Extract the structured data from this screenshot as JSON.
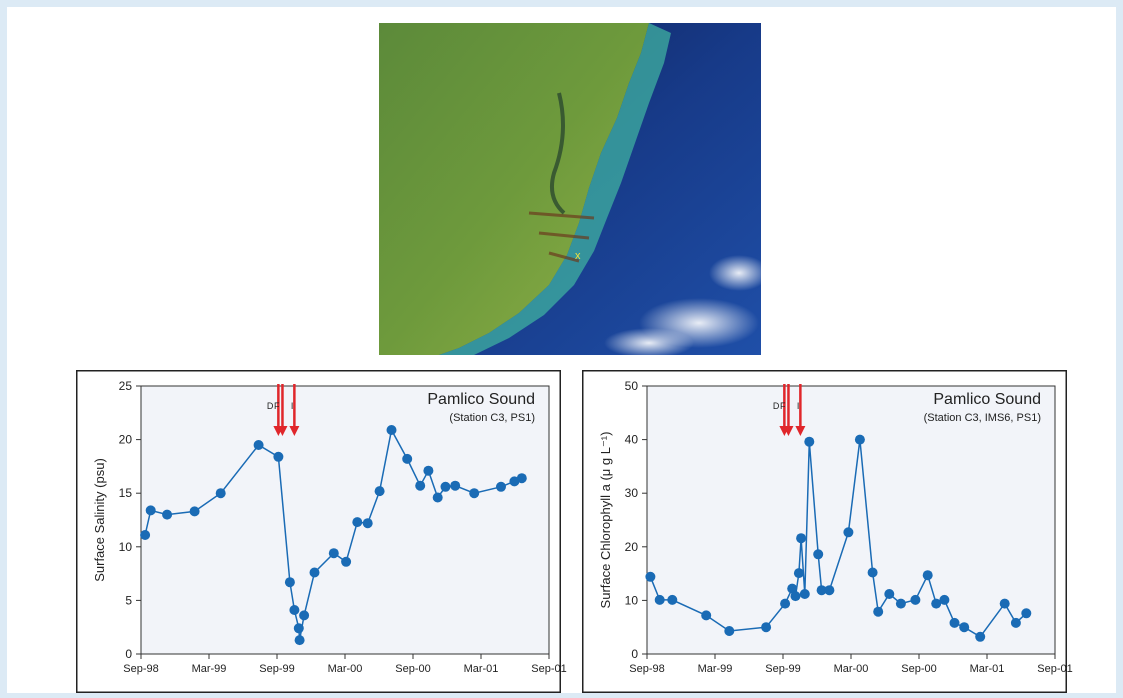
{
  "satellite": {
    "marker": "x"
  },
  "chart_data": [
    {
      "type": "line",
      "title": "Pamlico Sound",
      "subtitle": "(Station C3, PS1)",
      "ylabel": "Surface Salinity (psu)",
      "xlabel": "",
      "ylim": [
        0,
        25
      ],
      "yticks": [
        0,
        5,
        10,
        15,
        20,
        25
      ],
      "xlim": [
        "1998-09-01",
        "2001-09-01"
      ],
      "xticks": [
        "Sep-98",
        "Mar-99",
        "Sep-99",
        "Mar-00",
        "Sep-00",
        "Mar-01",
        "Sep-01"
      ],
      "grid": false,
      "color": "#1a6bb5",
      "storms": [
        {
          "label": "D",
          "date": "1999-09-05"
        },
        {
          "label": "F",
          "date": "1999-09-16"
        },
        {
          "label": "I",
          "date": "1999-10-18"
        }
      ],
      "points": [
        {
          "x": "1998-09-12",
          "y": 11.1
        },
        {
          "x": "1998-09-27",
          "y": 13.4
        },
        {
          "x": "1998-11-10",
          "y": 13.0
        },
        {
          "x": "1999-01-23",
          "y": 13.3
        },
        {
          "x": "1999-04-03",
          "y": 15.0
        },
        {
          "x": "1999-07-14",
          "y": 19.5
        },
        {
          "x": "1999-09-05",
          "y": 18.4
        },
        {
          "x": "1999-10-06",
          "y": 6.7
        },
        {
          "x": "1999-10-18",
          "y": 4.1
        },
        {
          "x": "1999-10-30",
          "y": 2.4
        },
        {
          "x": "1999-11-01",
          "y": 1.3
        },
        {
          "x": "1999-11-13",
          "y": 3.6
        },
        {
          "x": "1999-12-11",
          "y": 7.6
        },
        {
          "x": "2000-02-01",
          "y": 9.4
        },
        {
          "x": "2000-03-05",
          "y": 8.6
        },
        {
          "x": "2000-04-04",
          "y": 12.3
        },
        {
          "x": "2000-05-02",
          "y": 12.2
        },
        {
          "x": "2000-06-03",
          "y": 15.2
        },
        {
          "x": "2000-07-05",
          "y": 20.9
        },
        {
          "x": "2000-08-16",
          "y": 18.2
        },
        {
          "x": "2000-09-20",
          "y": 15.7
        },
        {
          "x": "2000-10-12",
          "y": 17.1
        },
        {
          "x": "2000-11-06",
          "y": 14.6
        },
        {
          "x": "2000-11-27",
          "y": 15.6
        },
        {
          "x": "2000-12-23",
          "y": 15.7
        },
        {
          "x": "2001-02-12",
          "y": 15.0
        },
        {
          "x": "2001-04-25",
          "y": 15.6
        },
        {
          "x": "2001-05-31",
          "y": 16.1
        },
        {
          "x": "2001-06-20",
          "y": 16.4
        }
      ]
    },
    {
      "type": "line",
      "title": "Pamlico Sound",
      "subtitle": "(Station C3, IMS6, PS1)",
      "ylabel": "Surface Chlorophyll a (μ g L⁻¹)",
      "xlabel": "",
      "ylim": [
        0,
        50
      ],
      "yticks": [
        0,
        10,
        20,
        30,
        40,
        50
      ],
      "xlim": [
        "1998-09-01",
        "2001-09-01"
      ],
      "xticks": [
        "Sep-98",
        "Mar-99",
        "Sep-99",
        "Mar-00",
        "Sep-00",
        "Mar-01",
        "Sep-01"
      ],
      "grid": false,
      "color": "#1a6bb5",
      "storms": [
        {
          "label": "D",
          "date": "1999-09-05"
        },
        {
          "label": "F",
          "date": "1999-09-16"
        },
        {
          "label": "I",
          "date": "1999-10-18"
        }
      ],
      "points": [
        {
          "x": "1998-09-10",
          "y": 14.4
        },
        {
          "x": "1998-10-05",
          "y": 10.1
        },
        {
          "x": "1998-11-08",
          "y": 10.1
        },
        {
          "x": "1999-02-07",
          "y": 7.2
        },
        {
          "x": "1999-04-10",
          "y": 4.3
        },
        {
          "x": "1999-07-18",
          "y": 5.0
        },
        {
          "x": "1999-09-07",
          "y": 9.4
        },
        {
          "x": "1999-09-26",
          "y": 12.2
        },
        {
          "x": "1999-10-05",
          "y": 10.8
        },
        {
          "x": "1999-10-14",
          "y": 15.1
        },
        {
          "x": "1999-10-20",
          "y": 21.6
        },
        {
          "x": "1999-10-30",
          "y": 11.2
        },
        {
          "x": "1999-11-11",
          "y": 39.6
        },
        {
          "x": "1999-12-05",
          "y": 18.6
        },
        {
          "x": "1999-12-14",
          "y": 11.9
        },
        {
          "x": "2000-01-04",
          "y": 11.9
        },
        {
          "x": "2000-02-24",
          "y": 22.7
        },
        {
          "x": "2000-03-26",
          "y": 40.0
        },
        {
          "x": "2000-04-29",
          "y": 15.2
        },
        {
          "x": "2000-05-14",
          "y": 7.9
        },
        {
          "x": "2000-06-13",
          "y": 11.2
        },
        {
          "x": "2000-07-14",
          "y": 9.4
        },
        {
          "x": "2000-08-22",
          "y": 10.1
        },
        {
          "x": "2000-09-24",
          "y": 14.7
        },
        {
          "x": "2000-10-17",
          "y": 9.4
        },
        {
          "x": "2000-11-08",
          "y": 10.1
        },
        {
          "x": "2000-12-05",
          "y": 5.8
        },
        {
          "x": "2000-12-31",
          "y": 5.0
        },
        {
          "x": "2001-02-12",
          "y": 3.2
        },
        {
          "x": "2001-04-19",
          "y": 9.4
        },
        {
          "x": "2001-05-19",
          "y": 5.8
        },
        {
          "x": "2001-06-16",
          "y": 7.6
        }
      ]
    }
  ]
}
